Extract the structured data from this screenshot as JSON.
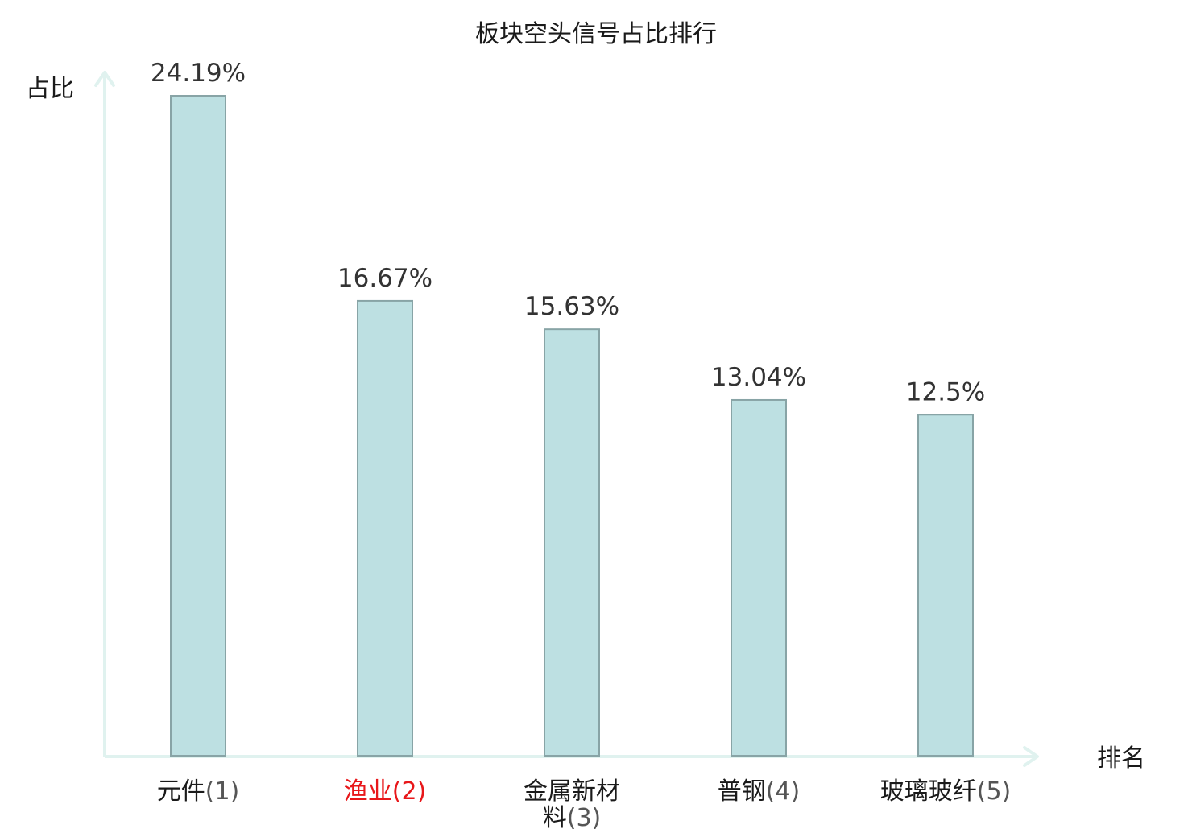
{
  "chart_data": {
    "type": "bar",
    "title": "板块空头信号占比排行",
    "ylabel": "占比",
    "xlabel": "排名",
    "categories": [
      {
        "name": "元件",
        "rank": "(1)",
        "highlight": false
      },
      {
        "name": "渔业",
        "rank": "(2)",
        "highlight": true
      },
      {
        "name": "金属新材料",
        "rank": "(3)",
        "highlight": false
      },
      {
        "name": "普钢",
        "rank": "(4)",
        "highlight": false
      },
      {
        "name": "玻璃玻纤",
        "rank": "(5)",
        "highlight": false
      }
    ],
    "values": [
      24.19,
      16.67,
      15.63,
      13.04,
      12.5
    ],
    "value_labels": [
      "24.19%",
      "16.67%",
      "15.63%",
      "13.04%",
      "12.5%"
    ],
    "ylim": [
      0,
      24.19
    ],
    "grid": false,
    "legend": "none",
    "colors": {
      "bar_fill": "#bde0e2",
      "bar_stroke": "#88a4a6",
      "axis": "#e0f2ef",
      "text": "#333333",
      "highlight_text": "#e8171a"
    }
  }
}
